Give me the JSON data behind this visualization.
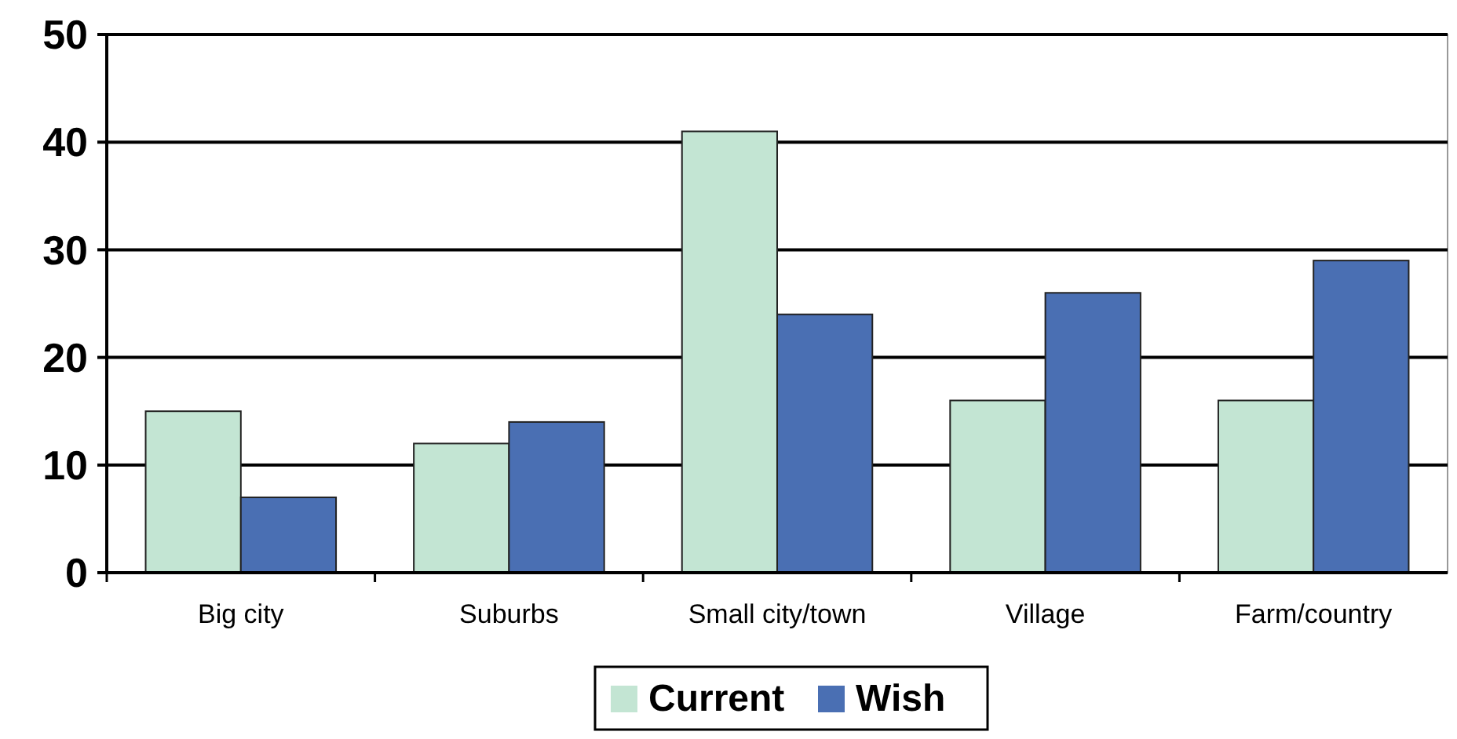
{
  "chart_data": {
    "type": "bar",
    "categories": [
      "Big city",
      "Suburbs",
      "Small city/town",
      "Village",
      "Farm/country"
    ],
    "series": [
      {
        "name": "Current",
        "color": "#c3e5d3",
        "values": [
          15,
          12,
          41,
          16,
          16
        ]
      },
      {
        "name": "Wish",
        "color": "#4a6fb3",
        "values": [
          7,
          14,
          24,
          26,
          29
        ]
      }
    ],
    "ylim": [
      0,
      50
    ],
    "yticks": [
      0,
      10,
      20,
      30,
      40,
      50
    ],
    "grid": "y",
    "legend": "bottom"
  }
}
